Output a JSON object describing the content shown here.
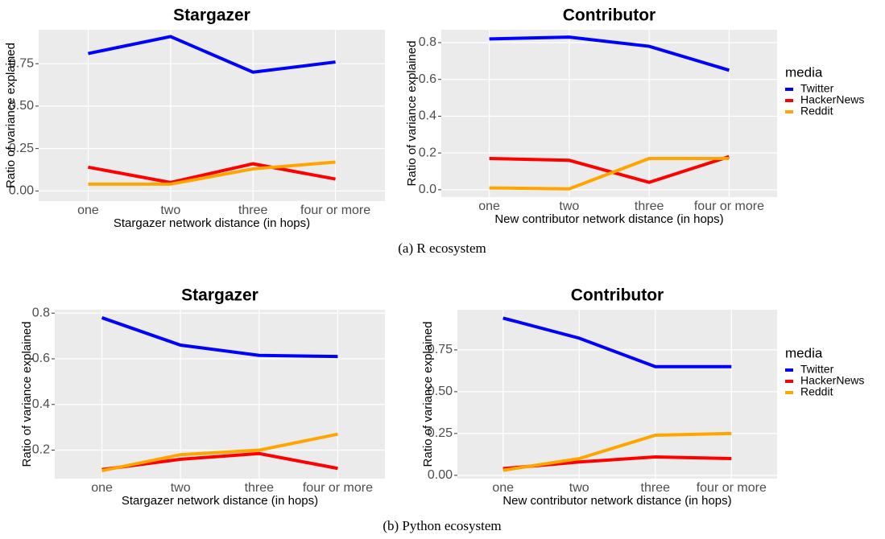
{
  "chart_data": [
    {
      "type": "line",
      "title": "Stargazer",
      "x_label": "Stargazer network distance (in hops)",
      "y_label": "Ratio of variance explained",
      "categories": [
        "one",
        "two",
        "three",
        "four or more"
      ],
      "series": [
        {
          "color": "#0000ff",
          "values": [
            0.81,
            0.91,
            0.7,
            0.76
          ]
        },
        {
          "color": "#ff0000",
          "values": [
            0.14,
            0.05,
            0.16,
            0.07
          ]
        },
        {
          "color": "#ffa500",
          "values": [
            0.04,
            0.04,
            0.13,
            0.17
          ]
        }
      ],
      "ylim": [
        -0.06,
        0.95
      ],
      "yticks": [
        {
          "value": 0,
          "label": "0.00"
        },
        {
          "value": 0.25,
          "label": "0.25"
        },
        {
          "value": 0.5,
          "label": "0.50"
        },
        0.75
      ],
      "grid": true
    },
    {
      "type": "line",
      "title": "Contributor",
      "x_label": "New contributor network distance (in hops)",
      "y_label": "Ratio of variance explained",
      "categories": [
        "one",
        "two",
        "three",
        "four or more"
      ],
      "legend_title": "media",
      "series": [
        {
          "name": "Twitter",
          "color": "#0000ff",
          "values": [
            0.82,
            0.83,
            0.78,
            0.65
          ]
        },
        {
          "name": "HackerNews",
          "color": "#ff0000",
          "values": [
            0.17,
            0.16,
            0.04,
            0.18
          ]
        },
        {
          "name": "Reddit",
          "color": "#ffa500",
          "values": [
            0.01,
            0.005,
            0.17,
            0.17
          ]
        }
      ],
      "ylim": [
        -0.04,
        0.87
      ],
      "yticks": [
        {
          "value": 0,
          "label": "0.0"
        },
        0.2,
        0.4,
        0.6,
        0.8
      ],
      "grid": true
    },
    {
      "type": "line",
      "title": "Stargazer",
      "x_label": "Stargazer network distance (in hops)",
      "y_label": "Ratio of variance explained",
      "categories": [
        "one",
        "two",
        "three",
        "four or more"
      ],
      "series": [
        {
          "color": "#0000ff",
          "values": [
            0.78,
            0.66,
            0.615,
            0.61
          ]
        },
        {
          "color": "#ff0000",
          "values": [
            0.115,
            0.16,
            0.185,
            0.12
          ]
        },
        {
          "color": "#ffa500",
          "values": [
            0.11,
            0.18,
            0.2,
            0.27
          ]
        }
      ],
      "ylim": [
        0.075,
        0.815
      ],
      "yticks": [
        0.2,
        0.4,
        0.6,
        0.8
      ],
      "grid": true
    },
    {
      "type": "line",
      "title": "Contributor",
      "x_label": "New contributor network distance (in hops)",
      "y_label": "Ratio of variance explained",
      "categories": [
        "one",
        "two",
        "three",
        "four or more"
      ],
      "legend_title": "media",
      "series": [
        {
          "name": "Twitter",
          "color": "#0000ff",
          "values": [
            0.94,
            0.82,
            0.65,
            0.65
          ]
        },
        {
          "name": "HackerNews",
          "color": "#ff0000",
          "values": [
            0.04,
            0.08,
            0.11,
            0.1
          ]
        },
        {
          "name": "Reddit",
          "color": "#ffa500",
          "values": [
            0.03,
            0.1,
            0.24,
            0.25
          ]
        }
      ],
      "ylim": [
        -0.02,
        0.99
      ],
      "yticks": [
        {
          "value": 0,
          "label": "0.00"
        },
        0.25,
        {
          "value": 0.5,
          "label": "0.50"
        },
        0.75
      ],
      "grid": true
    }
  ],
  "captions": [
    "(a) R ecosystem",
    "(b) Python ecosystem"
  ]
}
